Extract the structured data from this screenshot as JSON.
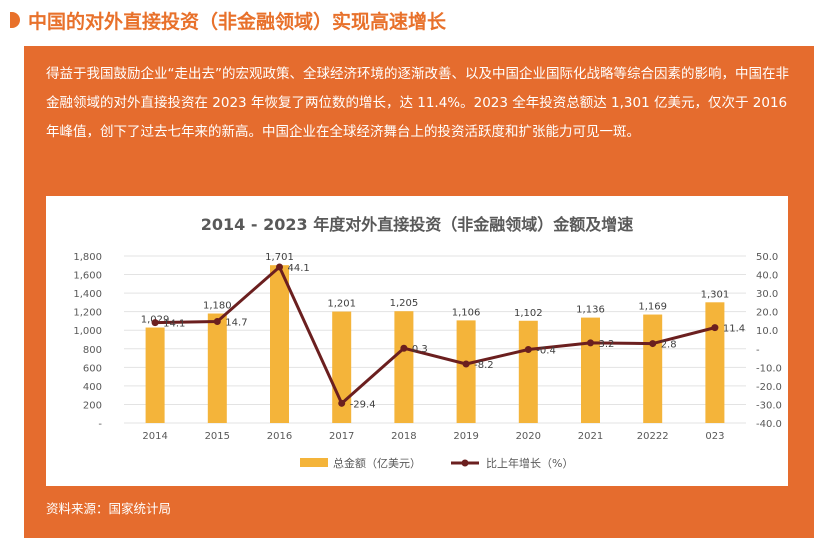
{
  "header": {
    "title": "中国的对外直接投资（非金融领域）实现高速增长"
  },
  "intro": {
    "text": "得益于我国鼓励企业“走出去”的宏观政策、全球经济环境的逐渐改善、以及中国企业国际化战略等综合因素的影响，中国在非金融领域的对外直接投资在 2023 年恢复了两位数的增长，达 11.4%。2023 全年投资总额达 1,301 亿美元，仅次于 2016 年峰值，创下了过去七年来的新高。中国企业在全球经济舞台上的投资活跃度和扩张能力可见一斑。"
  },
  "source": {
    "text": "资料来源：国家统计局"
  },
  "colors": {
    "accent": "#e56c2e",
    "bar": "#f4b43a",
    "line": "#6b1f1f"
  },
  "chart_data": {
    "type": "bar",
    "title": "2014 - 2023 年度对外直接投资（非金融领域）金额及增速",
    "categories": [
      "2014",
      "2015",
      "2016",
      "2017",
      "2018",
      "2019",
      "2020",
      "2021",
      "20222",
      "023"
    ],
    "series": [
      {
        "name": "总金额（亿美元）",
        "type": "bar",
        "axis": "left",
        "values": [
          1029,
          1180,
          1701,
          1201,
          1205,
          1106,
          1102,
          1136,
          1169,
          1301
        ],
        "labels": [
          "1,029",
          "1,180",
          "1,701",
          "1,201",
          "1,205",
          "1,106",
          "1,102",
          "1,136",
          "1,169",
          "1,301"
        ]
      },
      {
        "name": "比上年增长（%）",
        "type": "line",
        "axis": "right",
        "values": [
          14.1,
          14.7,
          44.1,
          -29.4,
          0.3,
          -8.2,
          -0.4,
          3.2,
          2.8,
          11.4
        ],
        "labels": [
          "14.1",
          "14.7",
          "44.1",
          "-29.4",
          "0.3",
          "-8.2",
          "-0.4",
          "3.2",
          "2.8",
          "11.4"
        ]
      }
    ],
    "y_left": {
      "min": 0,
      "max": 1800,
      "ticks": [
        1800,
        1600,
        1400,
        1200,
        1000,
        800,
        600,
        400,
        200,
        0
      ],
      "tick_labels": [
        "1,800",
        "1,600",
        "1,400",
        "1,200",
        "1,000",
        "800",
        "600",
        "400",
        "200",
        "-"
      ]
    },
    "y_right": {
      "min": -40,
      "max": 50,
      "ticks": [
        50,
        40,
        30,
        20,
        10,
        0,
        -10,
        -20,
        -30,
        -40
      ],
      "tick_labels": [
        "50.0",
        "40.0",
        "30.0",
        "20.0",
        "10.0",
        "-",
        "-10.0",
        "-20.0",
        "-30.0",
        "-40.0"
      ]
    },
    "grid": true,
    "legend": "bottom"
  }
}
